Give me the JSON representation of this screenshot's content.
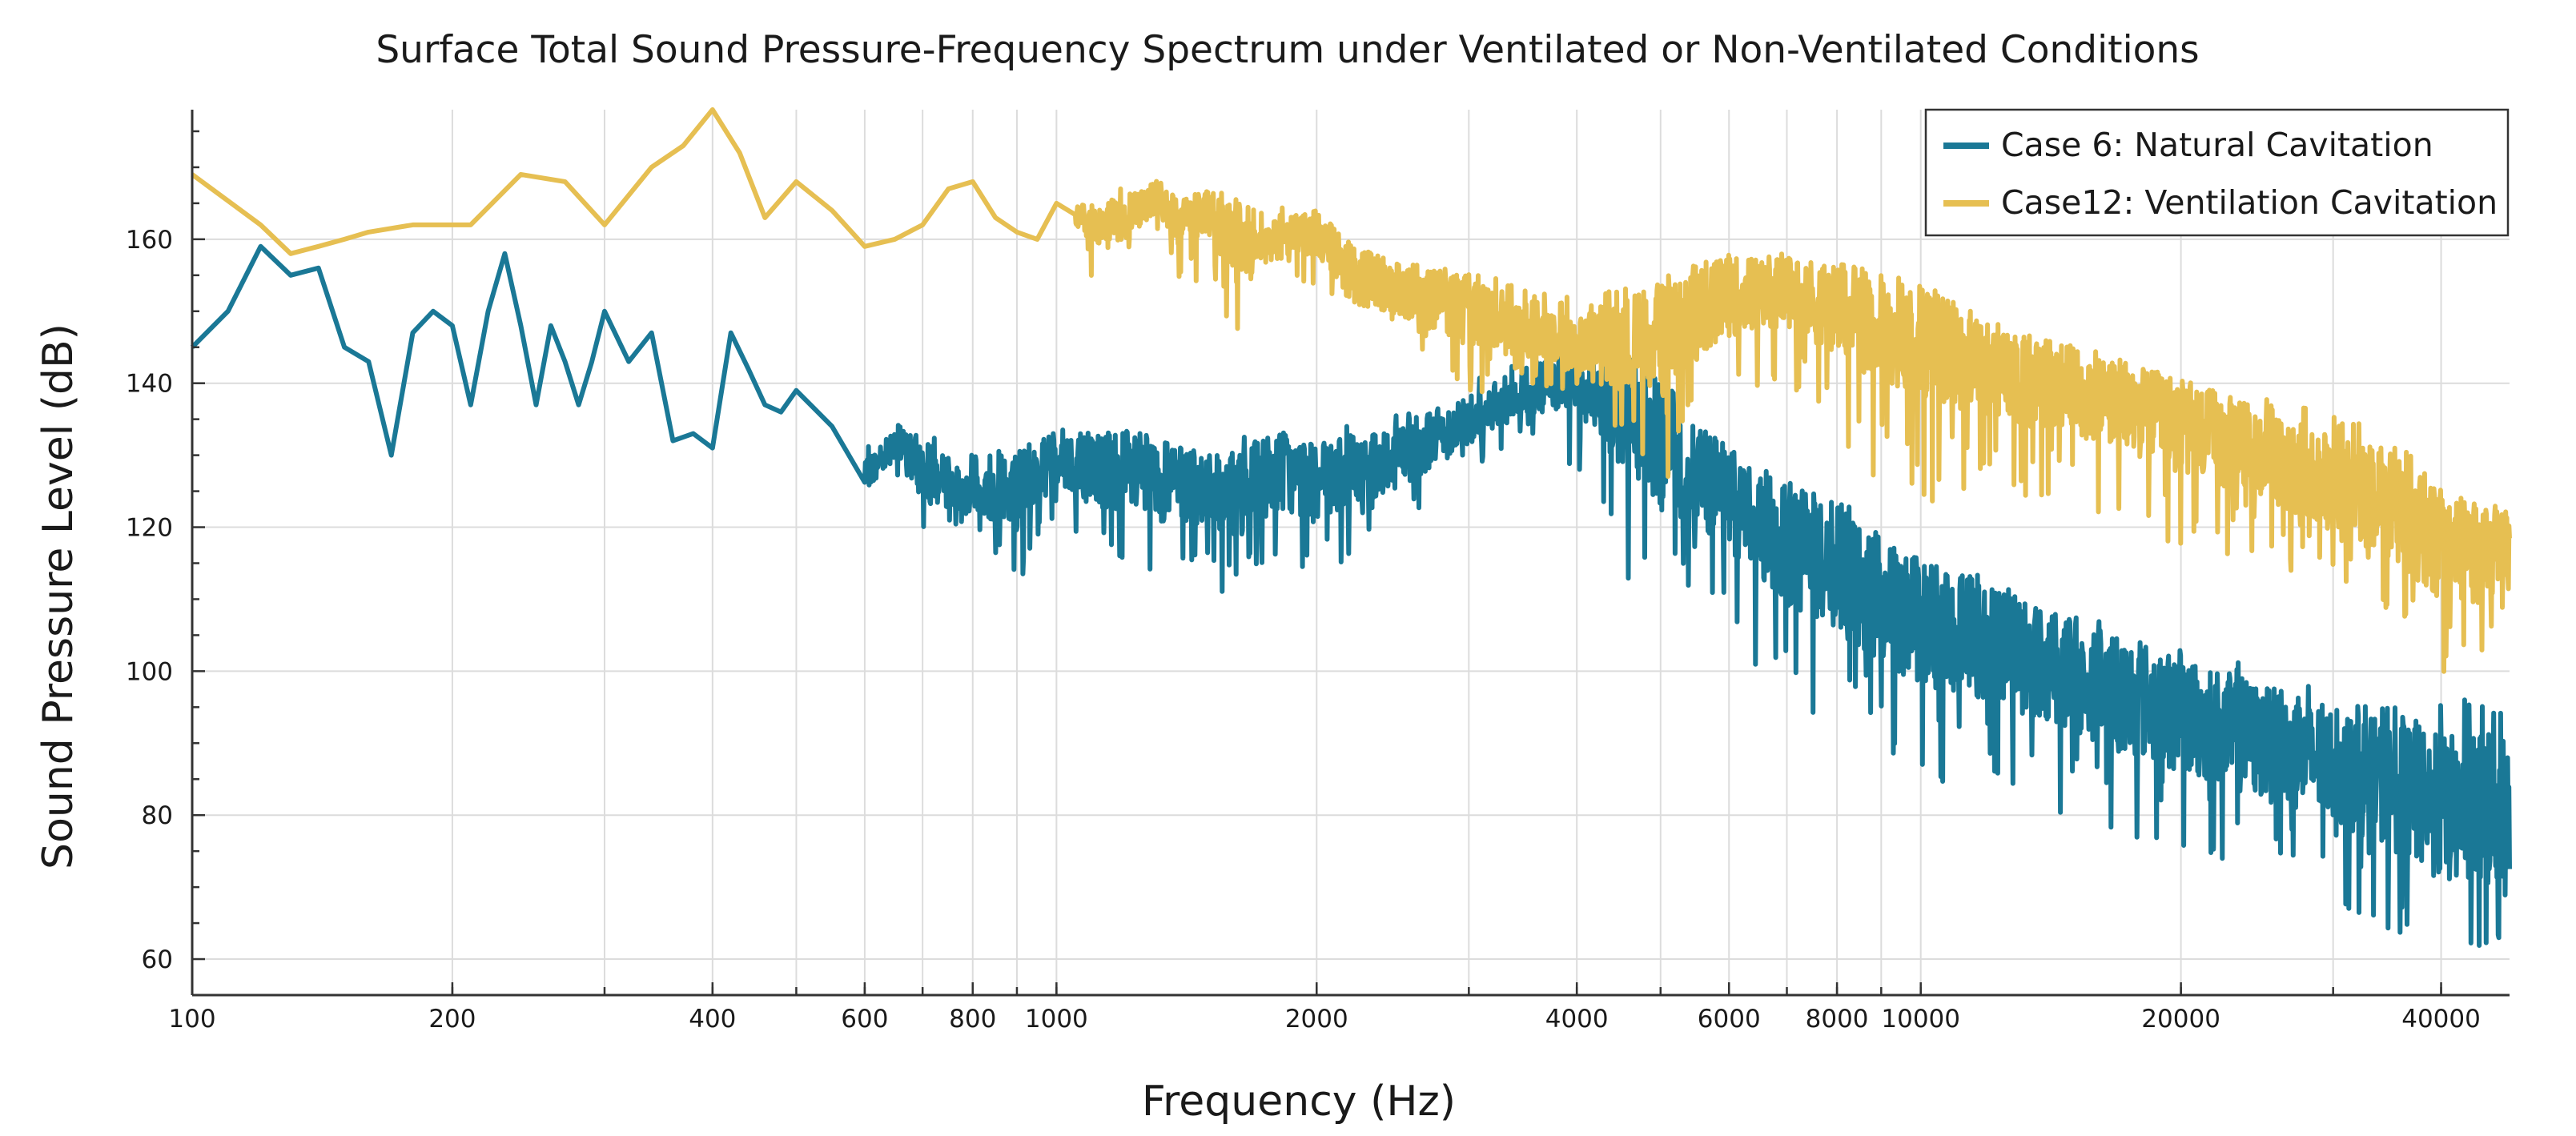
{
  "chart_data": {
    "type": "line",
    "title": "Surface Total Sound Pressure-Frequency Spectrum under Ventilated or Non-Ventilated Conditions",
    "xlabel": "Frequency (Hz)",
    "ylabel": "Sound Pressure Level (dB)",
    "xscale": "log",
    "xlim": [
      100,
      48000
    ],
    "ylim": [
      55,
      178
    ],
    "grid": true,
    "legend_position": "top-right",
    "x_ticks": [
      100,
      200,
      400,
      600,
      800,
      1000,
      2000,
      4000,
      6000,
      8000,
      10000,
      20000,
      40000
    ],
    "x_tick_labels": [
      "100",
      "200",
      "400",
      "600",
      "800",
      "1000",
      "2000",
      "4000",
      "6000",
      "8000",
      "10000",
      "20000",
      "40000"
    ],
    "y_ticks": [
      60,
      80,
      100,
      120,
      140,
      160
    ],
    "y_tick_labels": [
      "60",
      "80",
      "100",
      "120",
      "140",
      "160"
    ],
    "series": [
      {
        "name": "Case 6: Natural Cavitation",
        "color": "#1a7896",
        "x": [
          100,
          110,
          120,
          130,
          140,
          150,
          160,
          170,
          180,
          190,
          200,
          210,
          220,
          230,
          240,
          250,
          260,
          270,
          280,
          290,
          300,
          320,
          340,
          360,
          380,
          400,
          420,
          440,
          460,
          480,
          500,
          550,
          600,
          650,
          700,
          800,
          900,
          1000,
          1200,
          1400,
          1600,
          1800,
          2000,
          2500,
          3000,
          3500,
          4000,
          4500,
          5000,
          5500,
          6000,
          7000,
          8000,
          9000,
          10000,
          12000,
          14000,
          16000,
          18000,
          20000,
          25000,
          30000,
          35000,
          40000,
          45000,
          48000
        ],
        "values": [
          145,
          150,
          159,
          155,
          156,
          145,
          143,
          130,
          147,
          150,
          148,
          137,
          150,
          158,
          148,
          137,
          148,
          143,
          137,
          143,
          150,
          143,
          147,
          132,
          133,
          131,
          147,
          142,
          137,
          136,
          139,
          134,
          127,
          132,
          128,
          124,
          125,
          130,
          127,
          126,
          124,
          128,
          126,
          130,
          135,
          139,
          140,
          136,
          132,
          127,
          124,
          118,
          114,
          110,
          107,
          104,
          101,
          98,
          96,
          94,
          90,
          87,
          84,
          81,
          80,
          82
        ],
        "min_values": [
          145,
          150,
          159,
          155,
          156,
          145,
          143,
          130,
          147,
          150,
          148,
          137,
          150,
          158,
          148,
          137,
          148,
          143,
          137,
          143,
          150,
          143,
          147,
          132,
          133,
          131,
          147,
          142,
          137,
          136,
          139,
          134,
          126,
          127,
          118,
          121,
          112,
          120,
          108,
          113,
          109,
          114,
          113,
          120,
          128,
          131,
          128,
          112,
          103,
          110,
          104,
          95,
          92,
          88,
          85,
          83,
          80,
          78,
          76,
          74,
          71,
          68,
          63,
          59,
          57,
          60
        ],
        "max_values": [
          145,
          150,
          159,
          155,
          156,
          145,
          143,
          130,
          147,
          150,
          148,
          137,
          150,
          158,
          148,
          137,
          148,
          143,
          137,
          143,
          150,
          143,
          147,
          132,
          133,
          131,
          147,
          142,
          137,
          136,
          139,
          134,
          133,
          136,
          134,
          130,
          132,
          134,
          133,
          131,
          132,
          134,
          133,
          136,
          141,
          143,
          143,
          141,
          138,
          136,
          130,
          127,
          124,
          120,
          117,
          113,
          110,
          108,
          106,
          104,
          100,
          97,
          95,
          96,
          97,
          97
        ]
      },
      {
        "name": "Case12: Ventilation Cavitation",
        "color": "#e6bf52",
        "x": [
          100,
          120,
          130,
          140,
          150,
          160,
          180,
          210,
          240,
          270,
          300,
          340,
          370,
          400,
          430,
          460,
          500,
          550,
          600,
          650,
          700,
          750,
          800,
          850,
          900,
          950,
          1000,
          1100,
          1200,
          1300,
          1400,
          1500,
          1600,
          1700,
          1800,
          2000,
          2200,
          2500,
          3000,
          3500,
          4000,
          4500,
          5000,
          5500,
          6000,
          7000,
          8000,
          9000,
          10000,
          12000,
          14000,
          16000,
          18000,
          20000,
          25000,
          30000,
          35000,
          40000,
          45000,
          48000
        ],
        "values": [
          169,
          162,
          158,
          159,
          160,
          161,
          162,
          162,
          169,
          168,
          162,
          170,
          173,
          178,
          172,
          163,
          168,
          164,
          159,
          160,
          162,
          167,
          168,
          163,
          161,
          160,
          165,
          162,
          163,
          166,
          162,
          164,
          160,
          159,
          160,
          161,
          155,
          153,
          150,
          147,
          145,
          146,
          146,
          150,
          152,
          153,
          150,
          148,
          146,
          142,
          140,
          138,
          136,
          134,
          130,
          126,
          123,
          118,
          116,
          117
        ],
        "min_values": [
          169,
          162,
          158,
          159,
          160,
          161,
          162,
          162,
          169,
          168,
          162,
          170,
          173,
          178,
          172,
          163,
          168,
          164,
          159,
          160,
          162,
          167,
          168,
          163,
          161,
          160,
          165,
          154,
          158,
          159,
          153,
          155,
          142,
          156,
          155,
          152,
          145,
          145,
          138,
          140,
          138,
          133,
          125,
          132,
          138,
          140,
          132,
          126,
          122,
          124,
          122,
          121,
          119,
          117,
          115,
          112,
          106,
          96,
          100,
          107
        ],
        "max_values": [
          169,
          162,
          158,
          159,
          160,
          161,
          162,
          162,
          169,
          168,
          162,
          170,
          173,
          178,
          172,
          163,
          168,
          164,
          159,
          160,
          162,
          167,
          168,
          163,
          161,
          160,
          165,
          164,
          169,
          168,
          166,
          167,
          166,
          164,
          165,
          163,
          160,
          158,
          156,
          153,
          152,
          154,
          155,
          157,
          158,
          158,
          156,
          154,
          152,
          148,
          146,
          144,
          142,
          141,
          138,
          136,
          133,
          126,
          124,
          123
        ]
      }
    ]
  }
}
